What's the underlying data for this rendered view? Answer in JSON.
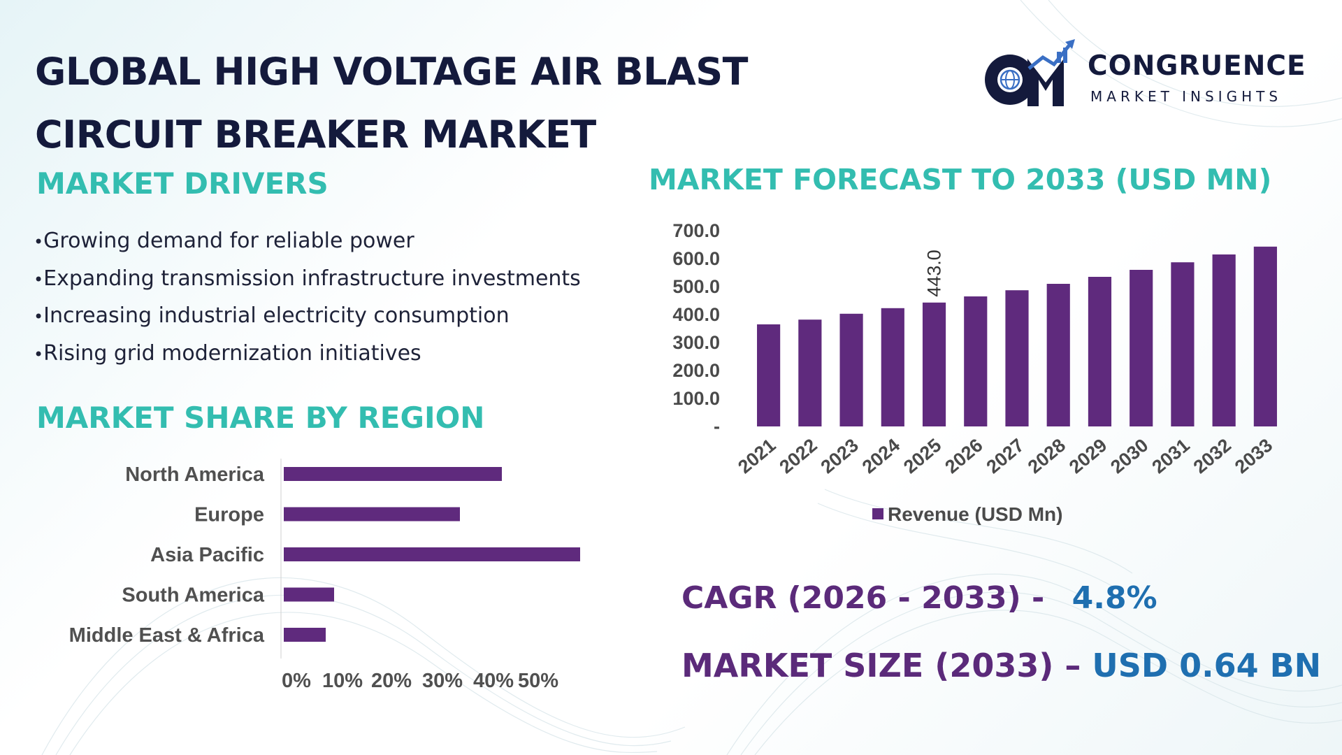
{
  "header": {
    "title_line1": "GLOBAL HIGH VOLTAGE AIR BLAST",
    "title_line2": "CIRCUIT BREAKER MARKET"
  },
  "logo": {
    "name": "CONGRUENCE",
    "tagline": "MARKET INSIGHTS",
    "mark_letters": "CM"
  },
  "drivers": {
    "heading": "MARKET DRIVERS",
    "items": [
      "Growing demand for reliable power",
      "Expanding transmission infrastructure investments",
      "Increasing industrial electricity consumption",
      "Rising grid modernization initiatives"
    ]
  },
  "region": {
    "heading": "MARKET SHARE BY REGION"
  },
  "forecast": {
    "heading": "MARKET FORECAST TO 2033 (USD MN)"
  },
  "stats": {
    "cagr_label": "CAGR (2026 - 2033) -",
    "cagr_value": "4.8%",
    "size_label": "MARKET SIZE (2033) –",
    "size_value": "USD 0.64 BN"
  },
  "colors": {
    "bar": "#5f2a7d",
    "heading_teal": "#33bdb0",
    "title_navy": "#141a3c",
    "stat_purple": "#5b2a7a",
    "stat_blue": "#1f6fb0",
    "logo_blue": "#3a6fc4"
  },
  "chart_data": [
    {
      "type": "bar",
      "title": "MARKET FORECAST TO 2033 (USD MN)",
      "categories": [
        "2021",
        "2022",
        "2023",
        "2024",
        "2025",
        "2026",
        "2027",
        "2028",
        "2029",
        "2030",
        "2031",
        "2032",
        "2033"
      ],
      "series": [
        {
          "name": "Revenue (USD Mn)",
          "values": [
            365,
            382,
            403,
            423,
            443,
            465,
            487,
            510,
            535,
            560,
            587,
            615,
            643
          ]
        }
      ],
      "data_labels": [
        {
          "category": "2025",
          "text": "443.0"
        }
      ],
      "yticks": [
        "-",
        "100.0",
        "200.0",
        "300.0",
        "400.0",
        "500.0",
        "600.0",
        "700.0"
      ],
      "ylim": [
        0,
        700
      ],
      "legend": "bottom",
      "grid": false
    },
    {
      "type": "bar",
      "orientation": "horizontal",
      "title": "MARKET SHARE BY REGION",
      "categories": [
        "North America",
        "Europe",
        "Asia Pacific",
        "South America",
        "Middle East & Africa"
      ],
      "values": [
        26,
        21,
        42,
        6,
        5
      ],
      "xticks": [
        "0%",
        "10%",
        "20%",
        "30%",
        "40%",
        "50%"
      ],
      "xlim": [
        0,
        50
      ],
      "grid": false
    }
  ]
}
